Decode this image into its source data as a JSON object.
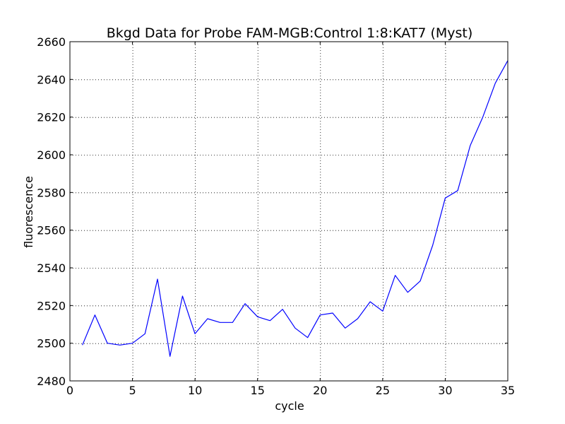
{
  "chart_data": {
    "type": "line",
    "title": "Bkgd Data for Probe FAM-MGB:Control 1:8:KAT7 (Myst)",
    "xlabel": "cycle",
    "ylabel": "fluorescence",
    "xlim": [
      0,
      35
    ],
    "ylim": [
      2480,
      2660
    ],
    "xticks": [
      0,
      5,
      10,
      15,
      20,
      25,
      30,
      35
    ],
    "yticks": [
      2480,
      2500,
      2520,
      2540,
      2560,
      2580,
      2600,
      2620,
      2640,
      2660
    ],
    "grid": true,
    "line_color": "#0000ff",
    "series": [
      {
        "x": [
          1,
          2,
          3,
          4,
          5,
          6,
          7,
          8,
          9,
          10,
          11,
          12,
          13,
          14,
          15,
          16,
          17,
          18,
          19,
          20,
          21,
          22,
          23,
          24,
          25,
          26,
          27,
          28,
          29,
          30,
          31,
          32,
          33,
          34,
          35
        ],
        "y": [
          2499,
          2515,
          2500,
          2499,
          2500,
          2505,
          2534,
          2493,
          2525,
          2505,
          2513,
          2511,
          2511,
          2521,
          2514,
          2512,
          2518,
          2508,
          2503,
          2515,
          2516,
          2508,
          2513,
          2522,
          2517,
          2536,
          2527,
          2533,
          2552,
          2577,
          2581,
          2605,
          2620,
          2638,
          2650
        ]
      }
    ]
  }
}
